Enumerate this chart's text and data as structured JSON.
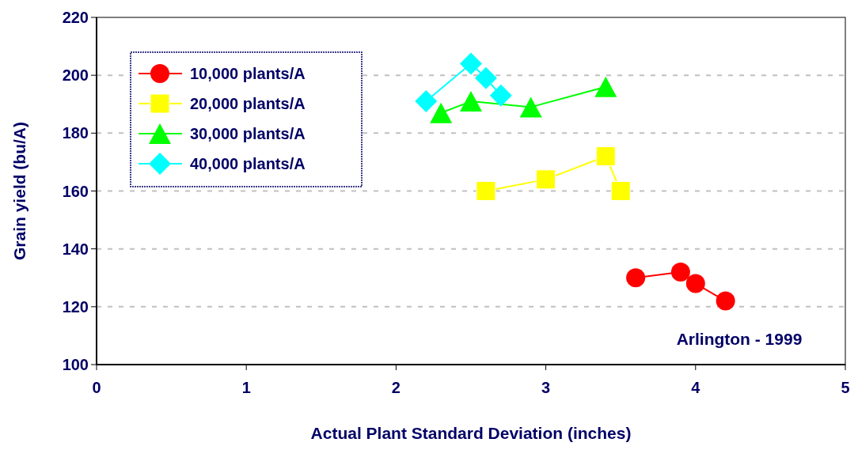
{
  "chart_data": {
    "type": "line",
    "xlabel": "Actual Plant Standard Deviation (inches)",
    "ylabel": "Grain yield (bu/A)",
    "annotations": [
      "Arlington - 1999"
    ],
    "xlim": [
      0,
      5
    ],
    "xticks": [
      0,
      1,
      2,
      3,
      4,
      5
    ],
    "ylim": [
      100,
      220
    ],
    "yticks": [
      100,
      120,
      140,
      160,
      180,
      200,
      220
    ],
    "grid": "y",
    "legend": "top left",
    "series": [
      {
        "name": "10,000 plants/A",
        "color": "#ff0000",
        "marker": "circle",
        "x": [
          3.6,
          3.9,
          4.0,
          4.2
        ],
        "values": [
          130,
          132,
          128,
          122
        ]
      },
      {
        "name": "20,000 plants/A",
        "color": "#ffff00",
        "marker": "square",
        "x": [
          2.6,
          3.0,
          3.4,
          3.5
        ],
        "values": [
          160,
          164,
          172,
          160
        ]
      },
      {
        "name": "30,000 plants/A",
        "color": "#00ff00",
        "marker": "triangle",
        "x": [
          2.3,
          2.5,
          2.9,
          3.4
        ],
        "values": [
          187,
          191,
          189,
          196
        ]
      },
      {
        "name": "40,000 plants/A",
        "color": "#00ffff",
        "marker": "diamond",
        "x": [
          2.2,
          2.5,
          2.6,
          2.7
        ],
        "values": [
          191,
          204,
          199,
          193
        ]
      }
    ]
  }
}
